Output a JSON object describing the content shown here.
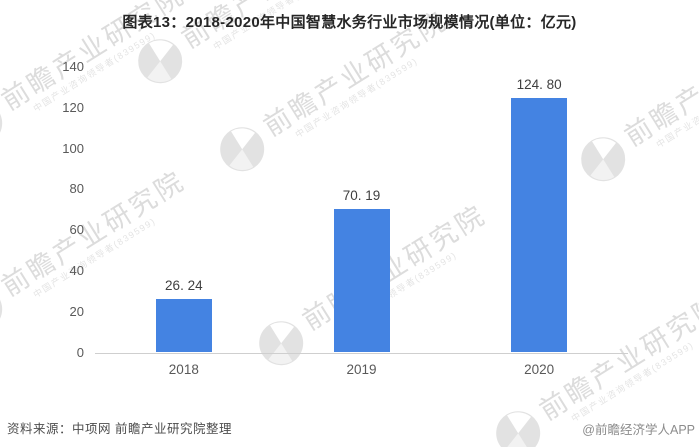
{
  "title": "图表13：2018-2020年中国智慧水务行业市场规模情况(单位：亿元)",
  "chart_data": {
    "type": "bar",
    "categories": [
      "2018",
      "2019",
      "2020"
    ],
    "values": [
      26.24,
      70.19,
      124.8
    ],
    "value_labels": [
      "26. 24",
      "70. 19",
      "124. 80"
    ],
    "title": "图表13：2018-2020年中国智慧水务行业市场规模情况(单位：亿元)",
    "xlabel": "",
    "ylabel": "",
    "unit": "亿元",
    "ylim": [
      0,
      140
    ],
    "yticks": [
      0,
      20,
      40,
      60,
      80,
      100,
      120,
      140
    ],
    "grid": false,
    "legend": null,
    "bar_color": "#4483E2"
  },
  "footer": {
    "source": "资料来源：中项网 前瞻产业研究院整理",
    "credit": "@前瞻经济学人APP"
  },
  "watermark": {
    "text": "前瞻产业研究院",
    "subtext": "中国产业咨询领导者(839599)",
    "logo_color": "#e2e2e2",
    "text_color": "#dcdcdc"
  },
  "colors": {
    "background": "#ffffff",
    "axis_line": "#cfcfcf",
    "tick_label": "#595959",
    "value_label": "#3f3f3f",
    "title": "#262626",
    "source_text": "#4d4d4d",
    "credit_text": "#8c8c8c"
  }
}
